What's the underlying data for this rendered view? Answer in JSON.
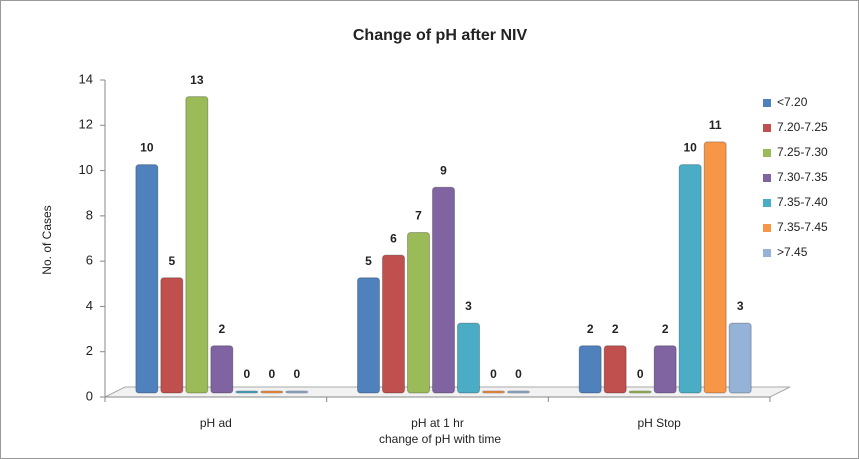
{
  "chart_data": {
    "type": "bar",
    "title": "Change of pH after NIV",
    "xlabel": "change of pH with time",
    "ylabel": "No. of Cases",
    "categories": [
      "pH ad",
      "pH at 1 hr",
      "pH Stop"
    ],
    "series": [
      {
        "name": "<7.20",
        "color": "#4f81bd",
        "values": [
          10,
          5,
          2
        ]
      },
      {
        "name": "7.20-7.25",
        "color": "#c0504d",
        "values": [
          5,
          6,
          2
        ]
      },
      {
        "name": "7.25-7.30",
        "color": "#9bbb59",
        "values": [
          13,
          7,
          0
        ]
      },
      {
        "name": "7.30-7.35",
        "color": "#8064a2",
        "values": [
          2,
          9,
          2
        ]
      },
      {
        "name": "7.35-7.40",
        "color": "#4bacc6",
        "values": [
          0,
          3,
          10
        ]
      },
      {
        "name": "7.35-7.45",
        "color": "#f79646",
        "values": [
          0,
          0,
          11
        ]
      },
      {
        "name": ">7.45",
        "color": "#95b3d7",
        "values": [
          0,
          0,
          3
        ]
      }
    ],
    "ylim": [
      0,
      14
    ],
    "yticks": [
      0,
      2,
      4,
      6,
      8,
      10,
      12,
      14
    ],
    "legend": "right",
    "data_labels": true
  }
}
